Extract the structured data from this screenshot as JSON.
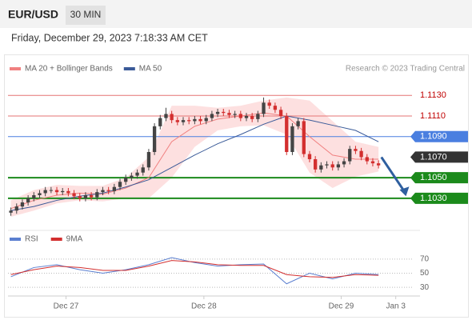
{
  "header": {
    "symbol": "EUR/USD",
    "interval": "30 MIN",
    "datetime": "Friday, December 29, 2023 7:18:33 AM CET"
  },
  "chart_data": {
    "type": "candlestick",
    "legend": [
      {
        "name": "MA 20 + Bollinger Bands",
        "color": "#f08080"
      },
      {
        "name": "MA 50",
        "color": "#3a5a98"
      }
    ],
    "credit": "Research © 2023 Trading Central",
    "xlim": [
      -0.5,
      71.5
    ],
    "xticks": [
      {
        "value": 9.6,
        "label": "Dec 27"
      },
      {
        "value": 33.6,
        "label": "Dec 28"
      },
      {
        "value": 57.5,
        "label": "Dec 29"
      },
      {
        "value": 67,
        "label": "Jan 3"
      }
    ],
    "ylim": [
      1.1005,
      1.1145
    ],
    "up_color": "#444444",
    "down_color": "#d32f2f",
    "open": [
      1.1016,
      1.1018,
      1.1022,
      1.1026,
      1.103,
      1.1033,
      1.1035,
      1.1038,
      1.1038,
      1.1036,
      1.1037,
      1.1035,
      1.1032,
      1.103,
      1.1033,
      1.1031,
      1.1036,
      1.1038,
      1.1037,
      1.1041,
      1.1046,
      1.105,
      1.1052,
      1.1055,
      1.106,
      1.1075,
      1.11,
      1.1108,
      1.1112,
      1.1106,
      1.1104,
      1.1106,
      1.1105,
      1.1107,
      1.1105,
      1.1108,
      1.1112,
      1.1114,
      1.1113,
      1.1111,
      1.1112,
      1.1108,
      1.111,
      1.1107,
      1.1112,
      1.1123,
      1.112,
      1.1116,
      1.111,
      1.1075,
      1.11,
      1.1105,
      1.1073,
      1.1068,
      1.1058,
      1.1062,
      1.1063,
      1.106,
      1.1063,
      1.1066,
      1.1078,
      1.1076,
      1.107,
      1.1066,
      1.1064
    ],
    "high": [
      1.1021,
      1.1025,
      1.1029,
      1.1033,
      1.1036,
      1.1038,
      1.1041,
      1.1041,
      1.1041,
      1.104,
      1.104,
      1.1038,
      1.1035,
      1.1036,
      1.1036,
      1.1039,
      1.1041,
      1.1041,
      1.1044,
      1.1049,
      1.1053,
      1.1055,
      1.1058,
      1.1063,
      1.1078,
      1.1103,
      1.1111,
      1.1118,
      1.1115,
      1.1109,
      1.1109,
      1.1109,
      1.111,
      1.111,
      1.1111,
      1.1115,
      1.1117,
      1.1117,
      1.1116,
      1.1115,
      1.1115,
      1.1113,
      1.1113,
      1.1115,
      1.1128,
      1.1126,
      1.1123,
      1.1119,
      1.1113,
      1.1103,
      1.1108,
      1.1108,
      1.1076,
      1.1071,
      1.1065,
      1.1066,
      1.1066,
      1.1066,
      1.1069,
      1.1081,
      1.1081,
      1.1079,
      1.1073,
      1.1069,
      1.1067
    ],
    "low": [
      1.1013,
      1.1015,
      1.1019,
      1.1023,
      1.1027,
      1.103,
      1.1032,
      1.1035,
      1.1033,
      1.1033,
      1.1032,
      1.1029,
      1.1027,
      1.1027,
      1.1028,
      1.1028,
      1.1033,
      1.1034,
      1.1034,
      1.1038,
      1.1043,
      1.1047,
      1.1049,
      1.1052,
      1.1057,
      1.1072,
      1.1097,
      1.1105,
      1.1103,
      1.1101,
      1.1101,
      1.1102,
      1.1102,
      1.1102,
      1.1102,
      1.1105,
      1.1109,
      1.111,
      1.1108,
      1.1108,
      1.1105,
      1.1105,
      1.1104,
      1.1104,
      1.1109,
      1.1117,
      1.1113,
      1.1107,
      1.1072,
      1.1072,
      1.1097,
      1.107,
      1.1065,
      1.1055,
      1.1055,
      1.1059,
      1.1057,
      1.1057,
      1.106,
      1.1063,
      1.1073,
      1.1067,
      1.1063,
      1.1061,
      1.1059
    ],
    "close": [
      1.1018,
      1.1022,
      1.1026,
      1.103,
      1.1033,
      1.1035,
      1.1038,
      1.1038,
      1.1036,
      1.1037,
      1.1035,
      1.1032,
      1.103,
      1.1033,
      1.1031,
      1.1036,
      1.1038,
      1.1037,
      1.1041,
      1.1046,
      1.105,
      1.1052,
      1.1055,
      1.106,
      1.1075,
      1.11,
      1.1108,
      1.1112,
      1.1106,
      1.1104,
      1.1106,
      1.1105,
      1.1107,
      1.1105,
      1.1108,
      1.1112,
      1.1114,
      1.1113,
      1.1111,
      1.1112,
      1.1108,
      1.111,
      1.1107,
      1.1112,
      1.1123,
      1.112,
      1.1116,
      1.111,
      1.1075,
      1.11,
      1.1105,
      1.1073,
      1.1068,
      1.1058,
      1.1062,
      1.1063,
      1.106,
      1.1063,
      1.1066,
      1.1078,
      1.1076,
      1.107,
      1.1066,
      1.1064,
      1.1062
    ],
    "ma_x": [
      0,
      4,
      8,
      12,
      16,
      20,
      24,
      28,
      32,
      36,
      40,
      44,
      48,
      52,
      56,
      60,
      64
    ],
    "ma20": [
      1.102,
      1.1028,
      1.1033,
      1.1035,
      1.1034,
      1.104,
      1.105,
      1.1085,
      1.11,
      1.1107,
      1.111,
      1.1113,
      1.111,
      1.109,
      1.1072,
      1.1068,
      1.1068
    ],
    "bb_upper": [
      1.1028,
      1.1038,
      1.1043,
      1.1042,
      1.1042,
      1.105,
      1.107,
      1.112,
      1.112,
      1.1118,
      1.112,
      1.1125,
      1.1128,
      1.1125,
      1.1105,
      1.1085,
      1.108
    ],
    "bb_lower": [
      1.1012,
      1.1018,
      1.1025,
      1.1028,
      1.1027,
      1.103,
      1.103,
      1.105,
      1.108,
      1.1096,
      1.11,
      1.1101,
      1.1092,
      1.1055,
      1.104,
      1.1051,
      1.1056
    ],
    "ma50": [
      1.1018,
      1.1022,
      1.1028,
      1.1032,
      1.1035,
      1.1041,
      1.1048,
      1.106,
      1.1072,
      1.1083,
      1.1092,
      1.1102,
      1.111,
      1.1106,
      1.1101,
      1.1096,
      1.1085
    ],
    "band_color": "#fdd8d8",
    "levels": [
      {
        "value": 1.113,
        "label": "1.1130",
        "color": "#e57373",
        "style": "resistance"
      },
      {
        "value": 1.111,
        "label": "1.1110",
        "color": "#e57373",
        "style": "resistance"
      },
      {
        "value": 1.109,
        "label": "1.1090",
        "color": "#4a7fe0",
        "style": "pivot"
      },
      {
        "value": 1.107,
        "label": "1.1070",
        "color": "#333333",
        "style": "last"
      },
      {
        "value": 1.105,
        "label": "1.1050",
        "color": "#1b8a1b",
        "style": "support"
      },
      {
        "value": 1.103,
        "label": "1.1030",
        "color": "#1b8a1b",
        "style": "support"
      }
    ],
    "arrow": {
      "from": 1.107,
      "to": 1.1032,
      "color": "#2f5f9f"
    },
    "rsi": {
      "legend": [
        {
          "name": "RSI",
          "color": "#5b7fd0"
        },
        {
          "name": "9MA",
          "color": "#d32f2f"
        }
      ],
      "ylim": [
        20,
        80
      ],
      "yticks": [
        70,
        50,
        30
      ],
      "x": [
        0,
        4,
        8,
        12,
        16,
        20,
        24,
        28,
        32,
        36,
        40,
        44,
        48,
        52,
        56,
        60,
        64
      ],
      "rsi": [
        45,
        58,
        62,
        55,
        50,
        55,
        62,
        72,
        65,
        60,
        62,
        63,
        35,
        50,
        42,
        50,
        48
      ],
      "ma9": [
        48,
        55,
        60,
        58,
        54,
        54,
        60,
        68,
        66,
        62,
        61,
        61,
        48,
        45,
        44,
        48,
        47
      ]
    }
  }
}
